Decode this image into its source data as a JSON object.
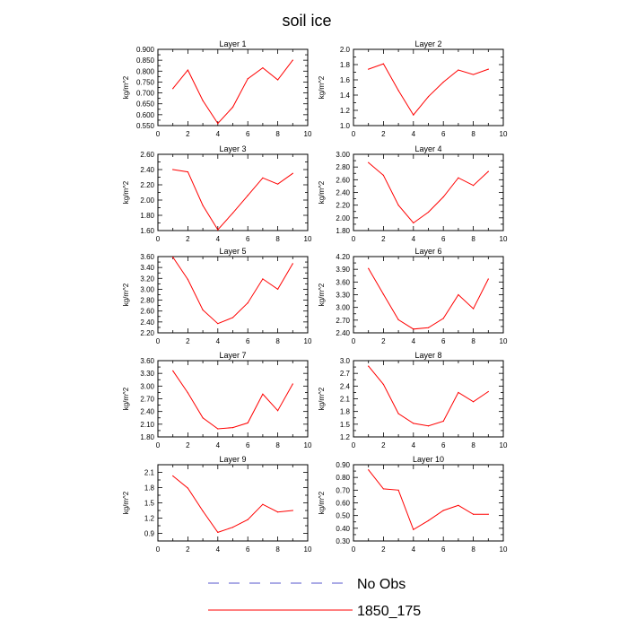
{
  "figure": {
    "title": "soil ice"
  },
  "colors": {
    "obs_line": "#5555cc",
    "model_line": "#ff0000",
    "axis": "#000000"
  },
  "legend": {
    "items": [
      {
        "label": "No Obs",
        "style": "dashed",
        "color": "#5555cc"
      },
      {
        "label": "1850_175",
        "style": "solid",
        "color": "#ff0000"
      }
    ]
  },
  "chart_data": [
    {
      "type": "line",
      "title": "Layer 1",
      "ylabel": "kg/m^2",
      "xlim": [
        0,
        10
      ],
      "xticks": [
        0,
        2,
        4,
        6,
        8,
        10
      ],
      "ylim": [
        0.55,
        0.9
      ],
      "yticks": [
        "0.550",
        "0.600",
        "0.650",
        "0.700",
        "0.750",
        "0.800",
        "0.850",
        "0.900"
      ],
      "series": [
        {
          "name": "1850_175",
          "x": [
            1,
            2,
            3,
            4,
            5,
            6,
            7,
            8,
            9
          ],
          "y": [
            0.72,
            0.805,
            0.665,
            0.56,
            0.635,
            0.765,
            0.815,
            0.76,
            0.85
          ]
        }
      ]
    },
    {
      "type": "line",
      "title": "Layer 2",
      "ylabel": "kg/m^2",
      "xlim": [
        0,
        10
      ],
      "xticks": [
        0,
        2,
        4,
        6,
        8,
        10
      ],
      "ylim": [
        1.0,
        2.0
      ],
      "yticks": [
        "1.0",
        "1.2",
        "1.4",
        "1.6",
        "1.8",
        "2.0"
      ],
      "series": [
        {
          "name": "1850_175",
          "x": [
            1,
            2,
            3,
            4,
            5,
            6,
            7,
            8,
            9
          ],
          "y": [
            1.74,
            1.81,
            1.46,
            1.14,
            1.38,
            1.57,
            1.73,
            1.67,
            1.74
          ]
        }
      ]
    },
    {
      "type": "line",
      "title": "Layer 3",
      "ylabel": "kg/m^2",
      "xlim": [
        0,
        10
      ],
      "xticks": [
        0,
        2,
        4,
        6,
        8,
        10
      ],
      "ylim": [
        1.6,
        2.6
      ],
      "yticks": [
        "1.60",
        "1.80",
        "2.00",
        "2.20",
        "2.40",
        "2.60"
      ],
      "series": [
        {
          "name": "1850_175",
          "x": [
            1,
            2,
            3,
            4,
            5,
            6,
            7,
            8,
            9
          ],
          "y": [
            2.4,
            2.37,
            1.93,
            1.61,
            1.83,
            2.06,
            2.29,
            2.21,
            2.35
          ]
        }
      ]
    },
    {
      "type": "line",
      "title": "Layer 4",
      "ylabel": "kg/m^2",
      "xlim": [
        0,
        10
      ],
      "xticks": [
        0,
        2,
        4,
        6,
        8,
        10
      ],
      "ylim": [
        1.8,
        3.0
      ],
      "yticks": [
        "1.80",
        "2.00",
        "2.20",
        "2.40",
        "2.60",
        "2.80",
        "3.00"
      ],
      "series": [
        {
          "name": "1850_175",
          "x": [
            1,
            2,
            3,
            4,
            5,
            6,
            7,
            8,
            9
          ],
          "y": [
            2.87,
            2.67,
            2.2,
            1.92,
            2.09,
            2.33,
            2.63,
            2.51,
            2.73
          ]
        }
      ]
    },
    {
      "type": "line",
      "title": "Layer 5",
      "ylabel": "kg/m^2",
      "xlim": [
        0,
        10
      ],
      "xticks": [
        0,
        2,
        4,
        6,
        8,
        10
      ],
      "ylim": [
        2.2,
        3.6
      ],
      "yticks": [
        "2.20",
        "2.40",
        "2.60",
        "2.80",
        "3.00",
        "3.20",
        "3.40",
        "3.60"
      ],
      "series": [
        {
          "name": "1850_175",
          "x": [
            1,
            2,
            3,
            4,
            5,
            6,
            7,
            8,
            9
          ],
          "y": [
            3.59,
            3.18,
            2.62,
            2.37,
            2.48,
            2.75,
            3.19,
            3.0,
            3.47
          ]
        }
      ]
    },
    {
      "type": "line",
      "title": "Layer 6",
      "ylabel": "kg/m^2",
      "xlim": [
        0,
        10
      ],
      "xticks": [
        0,
        2,
        4,
        6,
        8,
        10
      ],
      "ylim": [
        2.4,
        4.2
      ],
      "yticks": [
        "2.40",
        "2.70",
        "3.00",
        "3.30",
        "3.60",
        "3.90",
        "4.20"
      ],
      "series": [
        {
          "name": "1850_175",
          "x": [
            1,
            2,
            3,
            4,
            5,
            6,
            7,
            8,
            9
          ],
          "y": [
            3.92,
            3.31,
            2.71,
            2.49,
            2.52,
            2.74,
            3.3,
            2.97,
            3.67
          ]
        }
      ]
    },
    {
      "type": "line",
      "title": "Layer 7",
      "ylabel": "kg/m^2",
      "xlim": [
        0,
        10
      ],
      "xticks": [
        0,
        2,
        4,
        6,
        8,
        10
      ],
      "ylim": [
        1.8,
        3.6
      ],
      "yticks": [
        "1.80",
        "2.10",
        "2.40",
        "2.70",
        "3.00",
        "3.30",
        "3.60"
      ],
      "series": [
        {
          "name": "1850_175",
          "x": [
            1,
            2,
            3,
            4,
            5,
            6,
            7,
            8,
            9
          ],
          "y": [
            3.36,
            2.84,
            2.25,
            1.99,
            2.02,
            2.13,
            2.81,
            2.42,
            3.05
          ]
        }
      ]
    },
    {
      "type": "line",
      "title": "Layer 8",
      "ylabel": "kg/m^2",
      "xlim": [
        0,
        10
      ],
      "xticks": [
        0,
        2,
        4,
        6,
        8,
        10
      ],
      "ylim": [
        1.2,
        3.0
      ],
      "yticks": [
        "1.2",
        "1.5",
        "1.8",
        "2.1",
        "2.4",
        "2.7",
        "3.0"
      ],
      "series": [
        {
          "name": "1850_175",
          "x": [
            1,
            2,
            3,
            4,
            5,
            6,
            7,
            8,
            9
          ],
          "y": [
            2.87,
            2.44,
            1.75,
            1.52,
            1.46,
            1.57,
            2.25,
            2.03,
            2.27
          ]
        }
      ]
    },
    {
      "type": "line",
      "title": "Layer 9",
      "ylabel": "kg/m^2",
      "xlim": [
        0,
        10
      ],
      "xticks": [
        0,
        2,
        4,
        6,
        8,
        10
      ],
      "ylim": [
        0.75,
        2.25
      ],
      "yticks": [
        "0.9",
        "1.2",
        "1.5",
        "1.8",
        "2.1"
      ],
      "ytick_values": [
        0.9,
        1.2,
        1.5,
        1.8,
        2.1
      ],
      "series": [
        {
          "name": "1850_175",
          "x": [
            1,
            2,
            3,
            4,
            5,
            6,
            7,
            8,
            9
          ],
          "y": [
            2.03,
            1.79,
            1.34,
            0.92,
            1.02,
            1.17,
            1.47,
            1.32,
            1.35
          ]
        }
      ]
    },
    {
      "type": "line",
      "title": "Layer 10",
      "ylabel": "kg/m^2",
      "xlim": [
        0,
        10
      ],
      "xticks": [
        0,
        2,
        4,
        6,
        8,
        10
      ],
      "ylim": [
        0.3,
        0.9
      ],
      "yticks": [
        "0.30",
        "0.40",
        "0.50",
        "0.60",
        "0.70",
        "0.80",
        "0.90"
      ],
      "series": [
        {
          "name": "1850_175",
          "x": [
            1,
            2,
            3,
            4,
            5,
            6,
            7,
            8,
            9
          ],
          "y": [
            0.86,
            0.71,
            0.7,
            0.39,
            0.46,
            0.54,
            0.58,
            0.51,
            0.51
          ]
        }
      ]
    }
  ]
}
